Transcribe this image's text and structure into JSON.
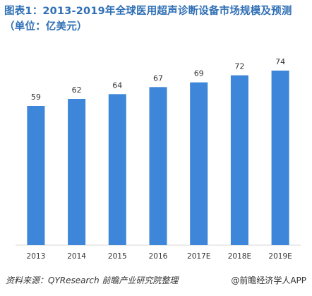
{
  "chart_data": {
    "type": "bar",
    "title": "图表1：2013-2019年全球医用超声诊断设备市场规模及预测（单位：亿美元）",
    "categories": [
      "2013",
      "2014",
      "2015",
      "2016",
      "2017E",
      "2018E",
      "2019E"
    ],
    "values": [
      59,
      62,
      64,
      67,
      69,
      72,
      74
    ],
    "ylim": [
      0,
      80
    ],
    "grid": false,
    "legend": "none",
    "bar_color": "#3d86d9",
    "label_color": "#333333"
  },
  "footer": {
    "source": "资料来源：QYResearch 前瞻产业研究院整理",
    "brand": "@前瞻经济学人APP"
  }
}
